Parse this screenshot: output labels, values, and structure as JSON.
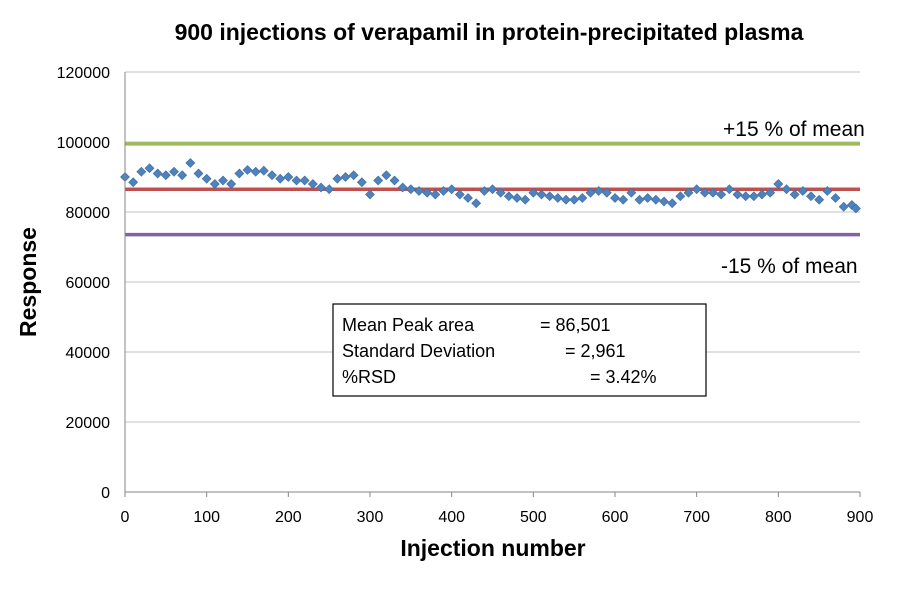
{
  "chart_data": {
    "type": "scatter",
    "title": "900 injections of verapamil in protein-precipitated plasma",
    "xlabel": "Injection number",
    "ylabel": "Response",
    "xlim": [
      0,
      900
    ],
    "ylim": [
      0,
      120000
    ],
    "xticks": [
      "0",
      "100",
      "200",
      "300",
      "400",
      "500",
      "600",
      "700",
      "800",
      "900"
    ],
    "yticks": [
      "0",
      "20000",
      "40000",
      "60000",
      "80000",
      "100000",
      "120000"
    ],
    "grid": "horizontal",
    "reference_lines": [
      {
        "label": "+15 % of mean",
        "y": 99476,
        "color": "#9bbb59"
      },
      {
        "label": "",
        "y": 86501,
        "color": "#c0504d"
      },
      {
        "label": "-15 % of mean",
        "y": 73526,
        "color": "#8064a2"
      }
    ],
    "stats_box": [
      {
        "label": "Mean Peak area",
        "value": "= 86,501"
      },
      {
        "label": "Standard Deviation",
        "value": "= 2,961"
      },
      {
        "label": "%RSD",
        "value": "= 3.42%"
      }
    ],
    "series": [
      {
        "color": "#4f81bd",
        "marker": "diamond",
        "points": [
          [
            0,
            90000
          ],
          [
            10,
            88500
          ],
          [
            20,
            91500
          ],
          [
            30,
            92500
          ],
          [
            40,
            91000
          ],
          [
            50,
            90500
          ],
          [
            60,
            91500
          ],
          [
            70,
            90500
          ],
          [
            80,
            94000
          ],
          [
            90,
            91000
          ],
          [
            100,
            89500
          ],
          [
            110,
            88000
          ],
          [
            120,
            89000
          ],
          [
            130,
            88000
          ],
          [
            140,
            91000
          ],
          [
            150,
            92000
          ],
          [
            160,
            91500
          ],
          [
            170,
            91800
          ],
          [
            180,
            90500
          ],
          [
            190,
            89500
          ],
          [
            200,
            90000
          ],
          [
            210,
            89000
          ],
          [
            220,
            89000
          ],
          [
            230,
            88000
          ],
          [
            240,
            87000
          ],
          [
            250,
            86500
          ],
          [
            260,
            89500
          ],
          [
            270,
            90000
          ],
          [
            280,
            90500
          ],
          [
            290,
            88500
          ],
          [
            300,
            85000
          ],
          [
            310,
            89000
          ],
          [
            320,
            90500
          ],
          [
            330,
            89000
          ],
          [
            340,
            87000
          ],
          [
            350,
            86500
          ],
          [
            360,
            86000
          ],
          [
            370,
            85500
          ],
          [
            380,
            85000
          ],
          [
            390,
            86000
          ],
          [
            400,
            86500
          ],
          [
            410,
            85000
          ],
          [
            420,
            84000
          ],
          [
            430,
            82500
          ],
          [
            440,
            86000
          ],
          [
            450,
            86500
          ],
          [
            460,
            85500
          ],
          [
            470,
            84500
          ],
          [
            480,
            84000
          ],
          [
            490,
            83500
          ],
          [
            500,
            85500
          ],
          [
            510,
            85000
          ],
          [
            520,
            84500
          ],
          [
            530,
            84000
          ],
          [
            540,
            83500
          ],
          [
            550,
            83500
          ],
          [
            560,
            84000
          ],
          [
            570,
            85500
          ],
          [
            580,
            86000
          ],
          [
            590,
            85500
          ],
          [
            600,
            84000
          ],
          [
            610,
            83500
          ],
          [
            620,
            85500
          ],
          [
            630,
            83500
          ],
          [
            640,
            84000
          ],
          [
            650,
            83500
          ],
          [
            660,
            83000
          ],
          [
            670,
            82500
          ],
          [
            680,
            84500
          ],
          [
            690,
            85500
          ],
          [
            700,
            86500
          ],
          [
            710,
            85500
          ],
          [
            720,
            85500
          ],
          [
            730,
            85000
          ],
          [
            740,
            86500
          ],
          [
            750,
            85000
          ],
          [
            760,
            84500
          ],
          [
            770,
            84500
          ],
          [
            780,
            85000
          ],
          [
            790,
            85500
          ],
          [
            800,
            88000
          ],
          [
            810,
            86500
          ],
          [
            820,
            85000
          ],
          [
            830,
            86000
          ],
          [
            840,
            84500
          ],
          [
            850,
            83500
          ],
          [
            860,
            86000
          ],
          [
            870,
            84000
          ],
          [
            880,
            81500
          ],
          [
            890,
            82000
          ],
          [
            895,
            81000
          ]
        ]
      }
    ]
  }
}
